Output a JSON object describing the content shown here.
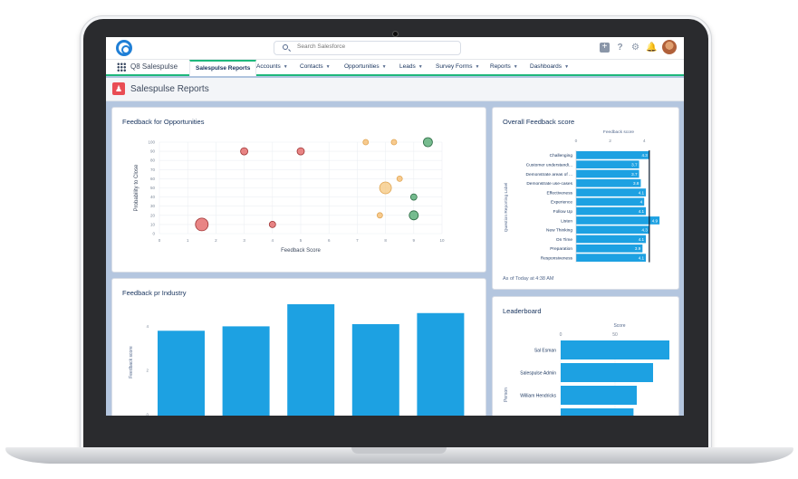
{
  "app": {
    "search_placeholder": "Search Salesforce",
    "app_name": "Q8 Salespulse",
    "tabs": [
      {
        "label": "Salespulse Reports",
        "active": true,
        "dropdown": false
      },
      {
        "label": "Accounts",
        "dropdown": true
      },
      {
        "label": "Contacts",
        "dropdown": true
      },
      {
        "label": "Opportunities",
        "dropdown": true
      },
      {
        "label": "Leads",
        "dropdown": true
      },
      {
        "label": "Survey Forms",
        "dropdown": true
      },
      {
        "label": "Reports",
        "dropdown": true
      },
      {
        "label": "Dashboards",
        "dropdown": true
      }
    ],
    "header_icons": [
      "add-icon",
      "help-icon",
      "gear-icon",
      "bell-icon"
    ],
    "page_title": "Salespulse Reports"
  },
  "cards": {
    "opportunities_title": "Feedback for Opportunities",
    "industry_title": "Feedback pr Industry",
    "overall_title": "Overall Feedback score",
    "overall_footer": "As of Today at 4:38 AM",
    "leaderboard_title": "Leaderboard"
  },
  "chart_data": [
    {
      "type": "scatter",
      "xlabel": "Feedback Score",
      "ylabel": "Probability to Close",
      "xlim": [
        0,
        10
      ],
      "ylim": [
        0,
        100
      ],
      "xticks": [
        "0",
        "1",
        "2",
        "3",
        "4",
        "5",
        "6",
        "7",
        "8",
        "9",
        "10"
      ],
      "yticks": [
        "0",
        "10",
        "20",
        "30",
        "40",
        "50",
        "60",
        "70",
        "80",
        "90",
        "100"
      ],
      "points": [
        {
          "x": 3,
          "y": 90,
          "size": 4,
          "color": "#e25c5c"
        },
        {
          "x": 5,
          "y": 90,
          "size": 4,
          "color": "#e25c5c"
        },
        {
          "x": 1.5,
          "y": 10,
          "size": 7,
          "color": "#e25c5c"
        },
        {
          "x": 4,
          "y": 10,
          "size": 3.5,
          "color": "#e25c5c"
        },
        {
          "x": 7.3,
          "y": 100,
          "size": 3,
          "color": "#f5b969"
        },
        {
          "x": 8.3,
          "y": 100,
          "size": 3,
          "color": "#f5b969"
        },
        {
          "x": 9.5,
          "y": 100,
          "size": 5,
          "color": "#4aa56a"
        },
        {
          "x": 8.5,
          "y": 60,
          "size": 3,
          "color": "#f5b969"
        },
        {
          "x": 8,
          "y": 50,
          "size": 6.5,
          "color": "#f5c77e"
        },
        {
          "x": 9,
          "y": 40,
          "size": 3.5,
          "color": "#4aa56a"
        },
        {
          "x": 7.8,
          "y": 20,
          "size": 3,
          "color": "#f5b969"
        },
        {
          "x": 9,
          "y": 20,
          "size": 5,
          "color": "#4aa56a"
        }
      ]
    },
    {
      "type": "bar",
      "orientation": "vertical",
      "ylabel": "Feedback score",
      "ylim": [
        0,
        5
      ],
      "yticks": [
        "0",
        "2",
        "4"
      ],
      "values": [
        3.8,
        4.0,
        5.0,
        4.1,
        4.6
      ],
      "color": "#1da1e2"
    },
    {
      "type": "bar",
      "orientation": "horizontal",
      "title": "Feedback score",
      "ylabel": "Question Reporting Label",
      "xlim": [
        0,
        5
      ],
      "xticks": [
        "0",
        "2",
        "4"
      ],
      "categories": [
        "Challenging",
        "Customer understandi...",
        "Demonstrate areas of ...",
        "Demonstrate use-cases",
        "Effectiveness",
        "Experience",
        "Follow Up",
        "Listen",
        "New Thinking",
        "On Time",
        "Preparation",
        "Responsiveness"
      ],
      "values": [
        4.3,
        3.7,
        3.7,
        3.8,
        4.1,
        4,
        4.1,
        4.9,
        4.3,
        4.1,
        3.9,
        4.1
      ],
      "labels": [
        "4.3",
        "3.7",
        "3.7",
        "3.8",
        "4.1",
        "4",
        "4.1",
        "4.9",
        "4.3",
        "4.1",
        "3.9",
        "4.1"
      ],
      "color": "#1da1e2"
    },
    {
      "type": "bar",
      "orientation": "horizontal",
      "title": "Score",
      "ylabel": "Person",
      "xlim": [
        0,
        100
      ],
      "xticks": [
        "0",
        "50"
      ],
      "categories": [
        "Sal Esman",
        "Salespulse Admin",
        "William Hendricks",
        ""
      ],
      "values": [
        100,
        85,
        70,
        67
      ],
      "color": "#1da1e2"
    }
  ]
}
